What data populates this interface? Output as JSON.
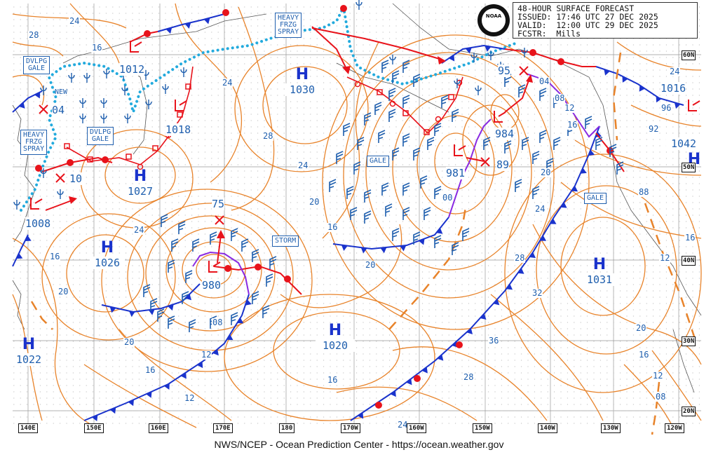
{
  "info": {
    "line1": "48-HOUR SURFACE FORECAST",
    "line2": "ISSUED: 17:46 UTC 27 DEC 2025",
    "line3": "VALID:  12:00 UTC 29 DEC 2025",
    "line4": "FCSTR:  Mills"
  },
  "logo_text": "NOAA",
  "footer": "NWS/NCEP - Ocean Prediction Center - https://ocean.weather.gov",
  "lat_labels": [
    "60N",
    "50N",
    "40N",
    "30N",
    "20N"
  ],
  "lon_labels": [
    "140E",
    "150E",
    "160E",
    "170E",
    "180",
    "170W",
    "160W",
    "150W",
    "140W",
    "130W",
    "120W"
  ],
  "highs": [
    {
      "value": "1030"
    },
    {
      "value": "1027"
    },
    {
      "value": "1026"
    },
    {
      "value": "1022"
    },
    {
      "value": "1020"
    },
    {
      "value": "1031"
    },
    {
      "value": "1042"
    }
  ],
  "lows": [
    {
      "value": "1012"
    },
    {
      "value": "1018"
    },
    {
      "value": "04"
    },
    {
      "value": "10"
    },
    {
      "value": "1008"
    },
    {
      "value": "75"
    },
    {
      "value": "980"
    },
    {
      "value": "95"
    },
    {
      "value": "984"
    },
    {
      "value": "981"
    },
    {
      "value": "89"
    },
    {
      "value": "1016"
    }
  ],
  "warnings": {
    "heavy_frzg_spray_top": [
      "HEAVY",
      "FRZG",
      "SPRAY"
    ],
    "heavy_frzg_spray_left": [
      "HEAVY",
      "FRZG",
      "SPRAY"
    ],
    "dvlpg_gale_left": [
      "DVLPG",
      "GALE"
    ],
    "dvlpg_gale_mid": [
      "DVLPG",
      "GALE"
    ],
    "gale_center": "GALE",
    "gale_east": "GALE",
    "storm": "STORM",
    "new": "NEW"
  },
  "isobar_labels": [
    "28",
    "24",
    "16",
    "24",
    "28",
    "24",
    "20",
    "16",
    "24",
    "16",
    "20",
    "20",
    "16",
    "12",
    "08",
    "12",
    "16",
    "20",
    "24",
    "28",
    "32",
    "36",
    "28",
    "24",
    "20",
    "16",
    "12",
    "08",
    "16",
    "12",
    "88",
    "92",
    "96",
    "00",
    "04",
    "08",
    "12",
    "16",
    "20",
    "24"
  ],
  "colors": {
    "isobar": "#e8832a",
    "cold_front": "#1a33cc",
    "warm_front": "#e8131b",
    "occluded": "#8a2be2",
    "ice_edge": "#22aadd",
    "label_blue": "#1f5fae",
    "grid": "#888888"
  }
}
